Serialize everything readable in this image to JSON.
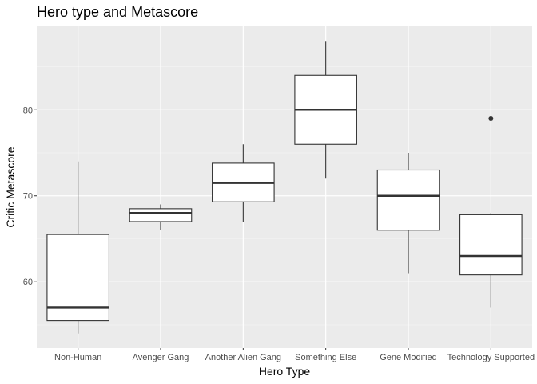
{
  "chart_data": {
    "type": "boxplot",
    "title": "Hero type and Metascore",
    "xlabel": "Hero Type",
    "ylabel": "Critic Metascore",
    "ylim": [
      52.3,
      89.7
    ],
    "yticks": [
      60,
      70,
      80
    ],
    "grid": true,
    "categories": [
      "Non-Human",
      "Avenger Gang",
      "Another Alien Gang",
      "Something Else",
      "Gene Modified",
      "Technology Supported"
    ],
    "boxes": [
      {
        "category": "Non-Human",
        "min": 54,
        "q1": 55.5,
        "median": 57,
        "q3": 65.5,
        "max": 74,
        "outliers": []
      },
      {
        "category": "Avenger Gang",
        "min": 66,
        "q1": 67,
        "median": 68,
        "q3": 68.5,
        "max": 69,
        "outliers": []
      },
      {
        "category": "Another Alien Gang",
        "min": 67,
        "q1": 69.3,
        "median": 71.5,
        "q3": 73.8,
        "max": 76,
        "outliers": []
      },
      {
        "category": "Something Else",
        "min": 72,
        "q1": 76,
        "median": 80,
        "q3": 84,
        "max": 88,
        "outliers": []
      },
      {
        "category": "Gene Modified",
        "min": 61,
        "q1": 66,
        "median": 70,
        "q3": 73,
        "max": 75,
        "outliers": []
      },
      {
        "category": "Technology Supported",
        "min": 57,
        "q1": 60.8,
        "median": 63,
        "q3": 67.8,
        "max": 68,
        "outliers": [
          79
        ]
      }
    ]
  },
  "colors": {
    "panel_background": "#ebebeb",
    "grid_major": "#ffffff",
    "grid_minor": "#f5f5f5",
    "box_fill": "#ffffff",
    "box_stroke": "#333333",
    "outlier": "#333333",
    "tick_text": "#4d4d4d"
  }
}
